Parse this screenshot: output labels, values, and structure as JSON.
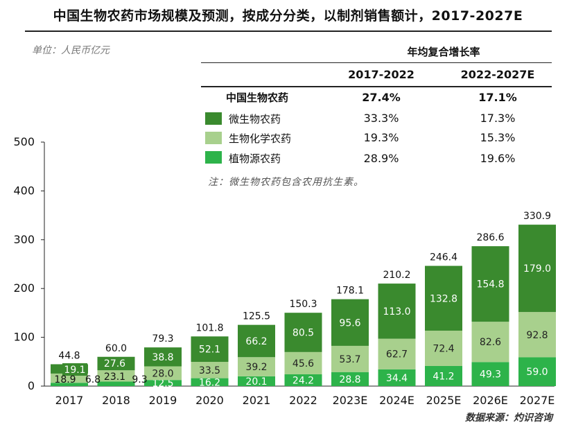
{
  "title": "中国生物农药市场规模及预测，按成分分类，以制剂销售额计，2017-2027E",
  "unit_note": "单位：人民币亿元",
  "source": "数据来源：灼识咨询",
  "note": "注：微生物农药包含农用抗生素。",
  "table": {
    "header": "年均复合增长率",
    "periods": [
      "2017-2022",
      "2022-2027E"
    ],
    "rows": [
      {
        "label": "中国生物农药",
        "values": [
          "27.4%",
          "17.1%"
        ],
        "bold": true
      },
      {
        "label": "微生物农药",
        "values": [
          "33.3%",
          "17.3%"
        ],
        "color": "#3a8a2e"
      },
      {
        "label": "生物化学农药",
        "values": [
          "19.3%",
          "15.3%"
        ],
        "color": "#a8d08d"
      },
      {
        "label": "植物源农药",
        "values": [
          "28.9%",
          "19.6%"
        ],
        "color": "#2db34a"
      }
    ]
  },
  "chart_data": {
    "type": "bar",
    "stacked": true,
    "categories": [
      "2017",
      "2018",
      "2019",
      "2020",
      "2021",
      "2022",
      "2023E",
      "2024E",
      "2025E",
      "2026E",
      "2027E"
    ],
    "series": [
      {
        "name": "植物源农药",
        "color": "#2db34a",
        "values": [
          6.8,
          9.3,
          12.5,
          16.2,
          20.1,
          24.2,
          28.8,
          34.4,
          41.2,
          49.3,
          59.0
        ]
      },
      {
        "name": "生物化学农药",
        "color": "#a8d08d",
        "values": [
          18.9,
          23.1,
          28.0,
          33.5,
          39.2,
          45.6,
          53.7,
          62.7,
          72.4,
          82.6,
          92.8
        ]
      },
      {
        "name": "微生物农药",
        "color": "#3a8a2e",
        "values": [
          19.1,
          27.6,
          38.8,
          52.1,
          66.2,
          80.5,
          95.6,
          113.0,
          132.8,
          154.8,
          179.0
        ]
      }
    ],
    "totals": [
      44.8,
      60.0,
      79.3,
      101.8,
      125.5,
      150.3,
      178.1,
      210.2,
      246.4,
      286.6,
      330.9
    ],
    "totals_labels": [
      "44.8",
      "60.0",
      "79.3",
      "101.8",
      "125.5",
      "150.3",
      "178.1",
      "210.2",
      "246.4",
      "286.6",
      "330.9"
    ],
    "value_labels": {
      "植物源农药": [
        "6.8",
        "9.3",
        "12.5",
        "16.2",
        "20.1",
        "24.2",
        "28.8",
        "34.4",
        "41.2",
        "49.3",
        "59.0"
      ],
      "生物化学农药": [
        "18.9",
        "23.1",
        "28.0",
        "33.5",
        "39.2",
        "45.6",
        "53.7",
        "62.7",
        "72.4",
        "82.6",
        "92.8"
      ],
      "微生物农药": [
        "19.1",
        "27.6",
        "38.8",
        "52.1",
        "66.2",
        "80.5",
        "95.6",
        "113.0",
        "132.8",
        "154.8",
        "179.0"
      ]
    },
    "yticks": [
      "0",
      "100",
      "200",
      "300",
      "400",
      "500"
    ],
    "ylim": [
      0,
      500
    ],
    "grid": false
  }
}
